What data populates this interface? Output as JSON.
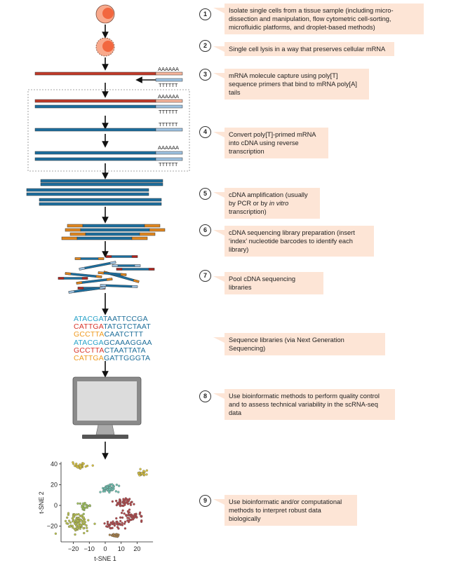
{
  "colors": {
    "mrna": "#c23b2a",
    "mrna_tail": "#f7b49b",
    "cdna": "#1c6e9e",
    "cdna_tail": "#9ec3e2",
    "barcode": "#e2871e",
    "index_red": "#b3241e",
    "callout_bg": "#fde5d6"
  },
  "strand_labels": {
    "poly_a": "AAAAAA",
    "poly_t": "TTTTTT"
  },
  "steps": [
    {
      "number": "1",
      "text": "Isolate single cells from a tissue sample (including micro-dissection and manipulation, flow cytometric cell-sorting, microfluidic platforms, and droplet-based methods)"
    },
    {
      "number": "2",
      "text": "Single cell lysis in a way that preserves cellular mRNA"
    },
    {
      "number": "3",
      "text": "mRNA molecule capture using poly[T] sequence primers that bind to mRNA poly[A] tails"
    },
    {
      "number": "4",
      "text": "Convert poly[T]-primed mRNA into cDNA using reverse transcription"
    },
    {
      "number": "5",
      "text_before": "cDNA amplification (usually by PCR or by ",
      "text_italic": "in vitro",
      "text_after": " transcription)"
    },
    {
      "number": "6",
      "text": "cDNA sequencing library preparation (insert ‘index’ nucleotide barcodes to identify each library)"
    },
    {
      "number": "7",
      "text": "Pool cDNA sequencing libraries"
    },
    {
      "number": "",
      "text": "Sequence libraries (via Next Generation Sequencing)"
    },
    {
      "number": "8",
      "text": "Use bioinformatic methods to perform quality control and to assess technical variability in the scRNA-seq data"
    },
    {
      "number": "9",
      "text": "Use bioinformatic and/or computational methods to interpret robust data biologically"
    }
  ],
  "sequences": [
    {
      "index": "ATACGA",
      "read": "TAATTCCGA",
      "index_color": "#2aa3c9"
    },
    {
      "index": "CATTGA",
      "read": "TATGTCTAAT",
      "index_color": "#d8352a"
    },
    {
      "index": "GCCTTA",
      "read": "CAATCTTT",
      "index_color": "#ef9a1e"
    },
    {
      "index": "ATACGA",
      "read": "GCAAAGGAA",
      "index_color": "#2aa3c9"
    },
    {
      "index": "GCCTTA",
      "read": "CTAATTATA",
      "index_color": "#d8352a"
    },
    {
      "index": "CATTGA",
      "read": "GATTGGGTA",
      "index_color": "#ef9a1e"
    }
  ],
  "read_color": "#1f6f9a",
  "chart_data": {
    "type": "scatter",
    "xlabel": "t-SNE 1",
    "ylabel": "t-SNE 2",
    "xlim": [
      -28,
      30
    ],
    "ylim": [
      -35,
      42
    ],
    "xticks": [
      -20,
      -10,
      0,
      10,
      20
    ],
    "yticks": [
      -20,
      0,
      20,
      40
    ],
    "grid": false,
    "clusters": [
      {
        "center": [
          -16,
          38
        ],
        "spread": [
          3.5,
          2
        ],
        "n": 35,
        "color": "#d9c33e"
      },
      {
        "center": [
          23,
          31
        ],
        "spread": [
          3,
          2
        ],
        "n": 28,
        "color": "#d9c33e"
      },
      {
        "center": [
          2,
          16
        ],
        "spread": [
          4.5,
          3.5
        ],
        "n": 60,
        "color": "#6fc2b2"
      },
      {
        "center": [
          12,
          3
        ],
        "spread": [
          5.5,
          3.5
        ],
        "n": 45,
        "color": "#b3474a"
      },
      {
        "center": [
          17,
          -10
        ],
        "spread": [
          5.5,
          4
        ],
        "n": 50,
        "color": "#b3474a"
      },
      {
        "center": [
          6,
          -18
        ],
        "spread": [
          6,
          3
        ],
        "n": 40,
        "color": "#b3474a"
      },
      {
        "center": [
          -17,
          -17
        ],
        "spread": [
          5.5,
          7
        ],
        "n": 110,
        "color": "#b9c24e"
      },
      {
        "center": [
          -13,
          -1
        ],
        "spread": [
          4,
          3
        ],
        "n": 25,
        "color": "#9fc35a"
      },
      {
        "center": [
          6,
          -29
        ],
        "spread": [
          3,
          2
        ],
        "n": 22,
        "color": "#a98049"
      }
    ]
  }
}
